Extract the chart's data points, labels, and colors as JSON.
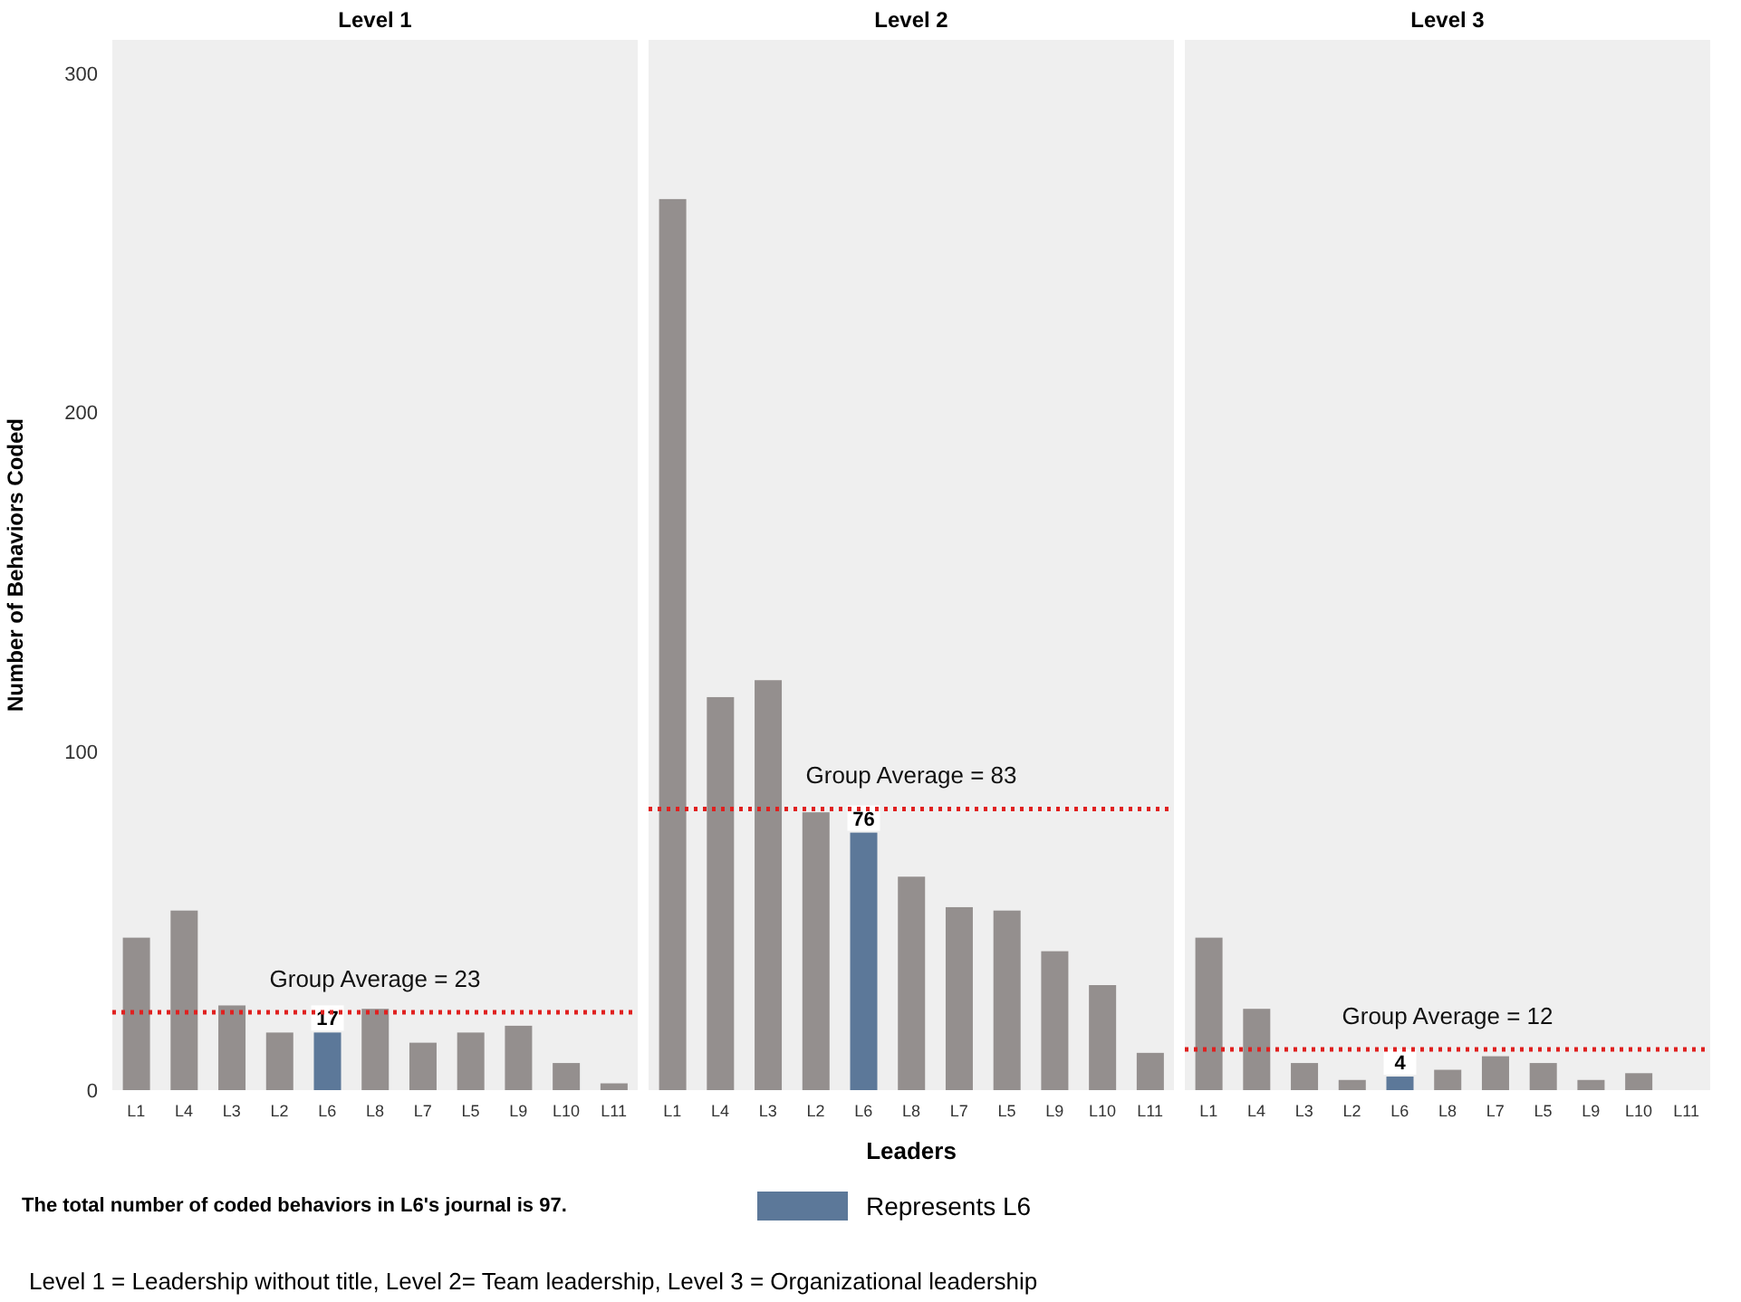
{
  "chart_data": [
    {
      "type": "bar",
      "title": "Level 1",
      "ylabel": "Number of Behaviors Coded",
      "categories": [
        "L1",
        "L4",
        "L3",
        "L2",
        "L6",
        "L8",
        "L7",
        "L5",
        "L9",
        "L10",
        "L11"
      ],
      "stacked": true,
      "series": [
        {
          "color": "#948f8e",
          "values": [
            45,
            53,
            25,
            17,
            null,
            24,
            14,
            17,
            19,
            8,
            2
          ]
        },
        {
          "color": "#5c7899",
          "values": [
            null,
            null,
            null,
            null,
            17,
            null,
            null,
            null,
            null,
            null,
            null
          ],
          "value_labels": [
            null,
            null,
            null,
            null,
            "17",
            null,
            null,
            null,
            null,
            null,
            null
          ]
        }
      ],
      "ylim": [
        0,
        310
      ],
      "yticks": [
        0,
        100,
        200,
        300
      ],
      "grid": false,
      "legend": false,
      "ref_lines": [
        {
          "axis": "y",
          "value": 23,
          "label": "Group Average = 23",
          "color": "#e0201f",
          "line_style": "dotted"
        }
      ],
      "annotations": [
        "The total number of coded behaviors in L6's journal is 97.",
        "Level 1 = Leadership without title, Level 2= Team leadership, Level 3 = Organizational leadership"
      ]
    },
    {
      "type": "bar",
      "title": "Level 2",
      "xlabel": "Leaders",
      "categories": [
        "L1",
        "L4",
        "L3",
        "L2",
        "L6",
        "L8",
        "L7",
        "L5",
        "L9",
        "L10",
        "L11"
      ],
      "stacked": true,
      "series": [
        {
          "color": "#948f8e",
          "values": [
            263,
            116,
            121,
            82,
            null,
            63,
            54,
            53,
            41,
            31,
            11
          ]
        },
        {
          "name": "Represents L6",
          "color": "#5c7899",
          "values": [
            null,
            null,
            null,
            null,
            76,
            null,
            null,
            null,
            null,
            null,
            null
          ],
          "value_labels": [
            null,
            null,
            null,
            null,
            "76",
            null,
            null,
            null,
            null,
            null,
            null
          ]
        }
      ],
      "ylim": [
        0,
        310
      ],
      "yticks": [
        0,
        100,
        200,
        300
      ],
      "tick_labels": "x",
      "grid": false,
      "legend": "bottom",
      "ref_lines": [
        {
          "axis": "y",
          "value": 83,
          "label": "Group Average = 83",
          "color": "#e0201f",
          "line_style": "dotted"
        }
      ]
    },
    {
      "type": "bar",
      "title": "Level 3",
      "categories": [
        "L1",
        "L4",
        "L3",
        "L2",
        "L6",
        "L8",
        "L7",
        "L5",
        "L9",
        "L10",
        "L11"
      ],
      "stacked": true,
      "series": [
        {
          "color": "#948f8e",
          "values": [
            45,
            24,
            8,
            3,
            null,
            6,
            10,
            8,
            3,
            5,
            0
          ]
        },
        {
          "color": "#5c7899",
          "values": [
            null,
            null,
            null,
            null,
            4,
            null,
            null,
            null,
            null,
            null,
            null
          ],
          "value_labels": [
            null,
            null,
            null,
            null,
            "4",
            null,
            null,
            null,
            null,
            null,
            null
          ]
        }
      ],
      "ylim": [
        0,
        310
      ],
      "yticks": [
        0,
        100,
        200,
        300
      ],
      "tick_labels": "x",
      "grid": false,
      "legend": false,
      "ref_lines": [
        {
          "axis": "y",
          "value": 12,
          "label": "Group Average = 12",
          "color": "#e0201f",
          "line_style": "dotted"
        }
      ]
    }
  ]
}
